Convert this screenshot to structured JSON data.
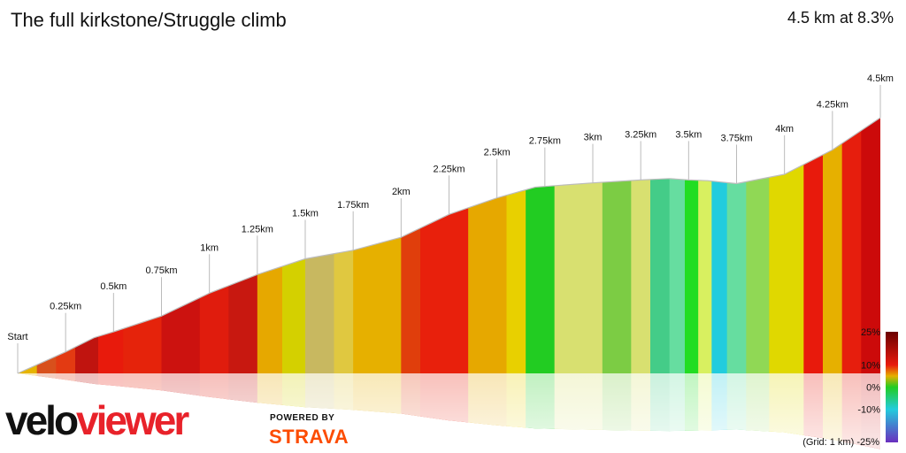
{
  "title": "The full kirkstone/Struggle climb",
  "summary": "4.5 km at 8.3%",
  "brand": {
    "velo": "velo",
    "viewer": "viewer",
    "powered_by": "POWERED BY",
    "strava": "STRAVA"
  },
  "grid_note": "(Grid: 1 km) -25%",
  "colors": {
    "velo": "#111111",
    "viewer": "#e8222a",
    "strava": "#fc4c02",
    "profile_line": "#bdbdbd"
  },
  "chart_data": {
    "type": "area",
    "xlabel": "",
    "ylabel": "",
    "distance_total_km": 4.5,
    "profile": [
      [
        0.0,
        0
      ],
      [
        0.1,
        12
      ],
      [
        0.25,
        30
      ],
      [
        0.4,
        50
      ],
      [
        0.5,
        58
      ],
      [
        0.75,
        80
      ],
      [
        1.0,
        112
      ],
      [
        1.25,
        138
      ],
      [
        1.5,
        160
      ],
      [
        1.75,
        172
      ],
      [
        2.0,
        190
      ],
      [
        2.25,
        222
      ],
      [
        2.5,
        245
      ],
      [
        2.7,
        260
      ],
      [
        3.0,
        266
      ],
      [
        3.25,
        270
      ],
      [
        3.4,
        272
      ],
      [
        3.5,
        270
      ],
      [
        3.6,
        269
      ],
      [
        3.75,
        265
      ],
      [
        4.0,
        278
      ],
      [
        4.25,
        312
      ],
      [
        4.5,
        357
      ]
    ],
    "km_markers": [
      {
        "label": "Start",
        "km": 0.0
      },
      {
        "label": "0.25km",
        "km": 0.25
      },
      {
        "label": "0.5km",
        "km": 0.5
      },
      {
        "label": "0.75km",
        "km": 0.75
      },
      {
        "label": "1km",
        "km": 1.0
      },
      {
        "label": "1.25km",
        "km": 1.25
      },
      {
        "label": "1.5km",
        "km": 1.5
      },
      {
        "label": "1.75km",
        "km": 1.75
      },
      {
        "label": "2km",
        "km": 2.0
      },
      {
        "label": "2.25km",
        "km": 2.25
      },
      {
        "label": "2.5km",
        "km": 2.5
      },
      {
        "label": "2.75km",
        "km": 2.75
      },
      {
        "label": "3km",
        "km": 3.0
      },
      {
        "label": "3.25km",
        "km": 3.25
      },
      {
        "label": "3.5km",
        "km": 3.5
      },
      {
        "label": "3.75km",
        "km": 3.75
      },
      {
        "label": "4km",
        "km": 4.0
      },
      {
        "label": "4.25km",
        "km": 4.25
      },
      {
        "label": "4.5km",
        "km": 4.5
      }
    ],
    "gradient_segments": [
      {
        "start_km": 0.0,
        "end_km": 0.1,
        "color": "#e6b400"
      },
      {
        "start_km": 0.1,
        "end_km": 0.2,
        "color": "#d8501c"
      },
      {
        "start_km": 0.2,
        "end_km": 0.3,
        "color": "#e33a12"
      },
      {
        "start_km": 0.3,
        "end_km": 0.42,
        "color": "#c0140f"
      },
      {
        "start_km": 0.42,
        "end_km": 0.55,
        "color": "#e81a0c"
      },
      {
        "start_km": 0.55,
        "end_km": 0.75,
        "color": "#e5230b"
      },
      {
        "start_km": 0.75,
        "end_km": 0.95,
        "color": "#cc120f"
      },
      {
        "start_km": 0.95,
        "end_km": 1.1,
        "color": "#e01c0d"
      },
      {
        "start_km": 1.1,
        "end_km": 1.25,
        "color": "#c81810"
      },
      {
        "start_km": 1.25,
        "end_km": 1.38,
        "color": "#e6a800"
      },
      {
        "start_km": 1.38,
        "end_km": 1.5,
        "color": "#d4d000"
      },
      {
        "start_km": 1.5,
        "end_km": 1.65,
        "color": "#c8b860"
      },
      {
        "start_km": 1.65,
        "end_km": 1.75,
        "color": "#e0c840"
      },
      {
        "start_km": 1.75,
        "end_km": 2.0,
        "color": "#e6b000"
      },
      {
        "start_km": 2.0,
        "end_km": 2.1,
        "color": "#e03e0c"
      },
      {
        "start_km": 2.1,
        "end_km": 2.35,
        "color": "#e8200c"
      },
      {
        "start_km": 2.35,
        "end_km": 2.55,
        "color": "#e6a800"
      },
      {
        "start_km": 2.55,
        "end_km": 2.65,
        "color": "#e8d000"
      },
      {
        "start_km": 2.65,
        "end_km": 2.8,
        "color": "#22cc22"
      },
      {
        "start_km": 2.8,
        "end_km": 3.05,
        "color": "#d8e070"
      },
      {
        "start_km": 3.05,
        "end_km": 3.2,
        "color": "#7ccc44"
      },
      {
        "start_km": 3.2,
        "end_km": 3.3,
        "color": "#d8e070"
      },
      {
        "start_km": 3.3,
        "end_km": 3.4,
        "color": "#44cc88"
      },
      {
        "start_km": 3.4,
        "end_km": 3.48,
        "color": "#66dda0"
      },
      {
        "start_km": 3.48,
        "end_km": 3.55,
        "color": "#22dd22"
      },
      {
        "start_km": 3.55,
        "end_km": 3.62,
        "color": "#d8f060"
      },
      {
        "start_km": 3.62,
        "end_km": 3.7,
        "color": "#22ccdd"
      },
      {
        "start_km": 3.7,
        "end_km": 3.8,
        "color": "#66dda0"
      },
      {
        "start_km": 3.8,
        "end_km": 3.92,
        "color": "#90d855"
      },
      {
        "start_km": 3.92,
        "end_km": 4.1,
        "color": "#e0d800"
      },
      {
        "start_km": 4.1,
        "end_km": 4.2,
        "color": "#e81a0c"
      },
      {
        "start_km": 4.2,
        "end_km": 4.3,
        "color": "#e6b000"
      },
      {
        "start_km": 4.3,
        "end_km": 4.4,
        "color": "#e61e0d"
      },
      {
        "start_km": 4.4,
        "end_km": 4.5,
        "color": "#cc0a0a"
      }
    ],
    "legend": {
      "labels": [
        "25%",
        "10%",
        "0%",
        "-10%"
      ],
      "gradient_stops": [
        {
          "pct": 25,
          "color": "#6b0000"
        },
        {
          "pct": 10,
          "color": "#e81a0c"
        },
        {
          "pct": 5,
          "color": "#e6b000"
        },
        {
          "pct": 0,
          "color": "#22cc22"
        },
        {
          "pct": -10,
          "color": "#22ccdd"
        },
        {
          "pct": -25,
          "color": "#6a2fbf"
        }
      ]
    }
  }
}
